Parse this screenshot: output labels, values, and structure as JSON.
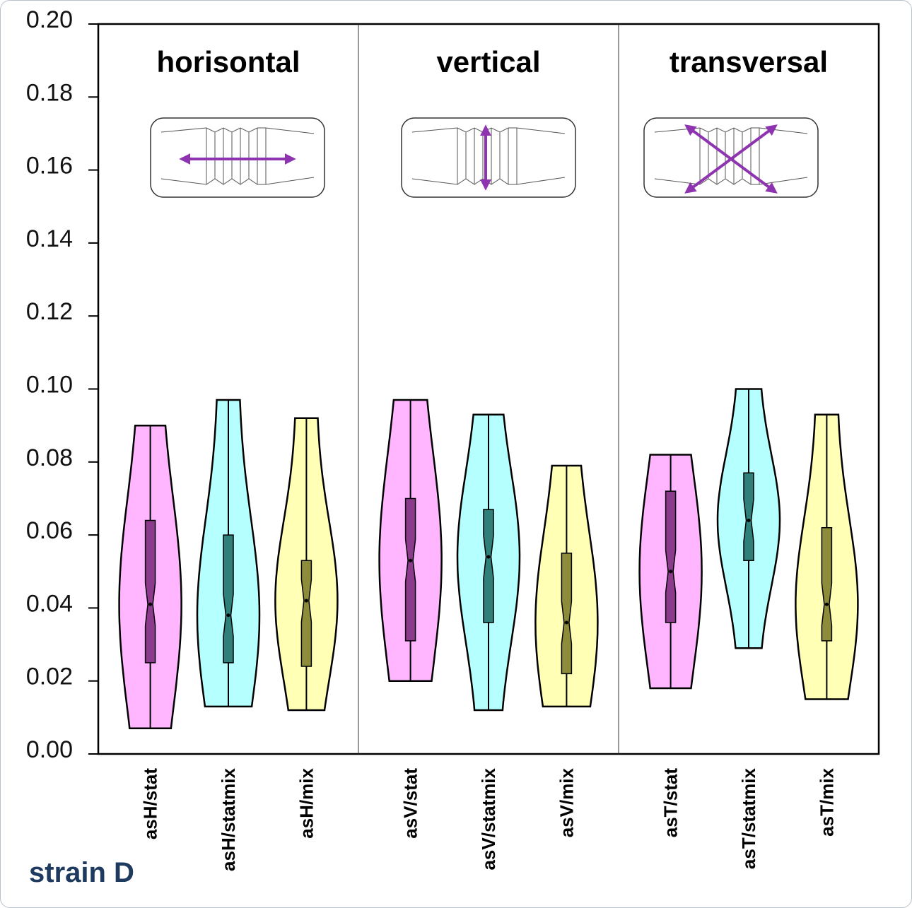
{
  "chart_data": {
    "type": "violin",
    "ylim": [
      0,
      0.2
    ],
    "yticks": [
      {
        "value": 0,
        "label": "0.00"
      },
      {
        "value": 0.02,
        "label": "0.02"
      },
      {
        "value": 0.04,
        "label": "0.04"
      },
      {
        "value": 0.06,
        "label": "0.06"
      },
      {
        "value": 0.08,
        "label": "0.08"
      },
      {
        "value": 0.1,
        "label": "0.10"
      },
      {
        "value": 0.12,
        "label": "0.12"
      },
      {
        "value": 0.14,
        "label": "0.14"
      },
      {
        "value": 0.16,
        "label": "0.16"
      },
      {
        "value": 0.18,
        "label": "0.18"
      },
      {
        "value": 0.2,
        "label": "0.20"
      }
    ],
    "colors": [
      "#ffb6ff",
      "#b6ffff",
      "#ffffb6"
    ],
    "box_colors": [
      "#8c3a8c",
      "#2f7f7a",
      "#8c8c3a"
    ],
    "panels": [
      {
        "title": "horisontal",
        "categories": [
          "asH/stat",
          "asH/statmix",
          "asH/mix"
        ],
        "min": [
          0.007,
          0.013,
          0.012
        ],
        "q1": [
          0.025,
          0.025,
          0.024
        ],
        "median": [
          0.041,
          0.038,
          0.042
        ],
        "q3": [
          0.064,
          0.06,
          0.053
        ],
        "max": [
          0.09,
          0.097,
          0.092
        ]
      },
      {
        "title": "vertical",
        "categories": [
          "asV/stat",
          "asV/statmix",
          "asV/mix"
        ],
        "min": [
          0.02,
          0.012,
          0.013
        ],
        "q1": [
          0.031,
          0.036,
          0.022
        ],
        "median": [
          0.053,
          0.054,
          0.036
        ],
        "q3": [
          0.07,
          0.067,
          0.055
        ],
        "max": [
          0.097,
          0.093,
          0.079
        ]
      },
      {
        "title": "transversal",
        "categories": [
          "asT/stat",
          "asT/statmix",
          "asT/mix"
        ],
        "min": [
          0.018,
          0.029,
          0.015
        ],
        "q1": [
          0.036,
          0.053,
          0.031
        ],
        "median": [
          0.05,
          0.064,
          0.041
        ],
        "q3": [
          0.072,
          0.077,
          0.062
        ],
        "max": [
          0.082,
          0.1,
          0.093
        ]
      }
    ]
  },
  "caption": "strain D"
}
